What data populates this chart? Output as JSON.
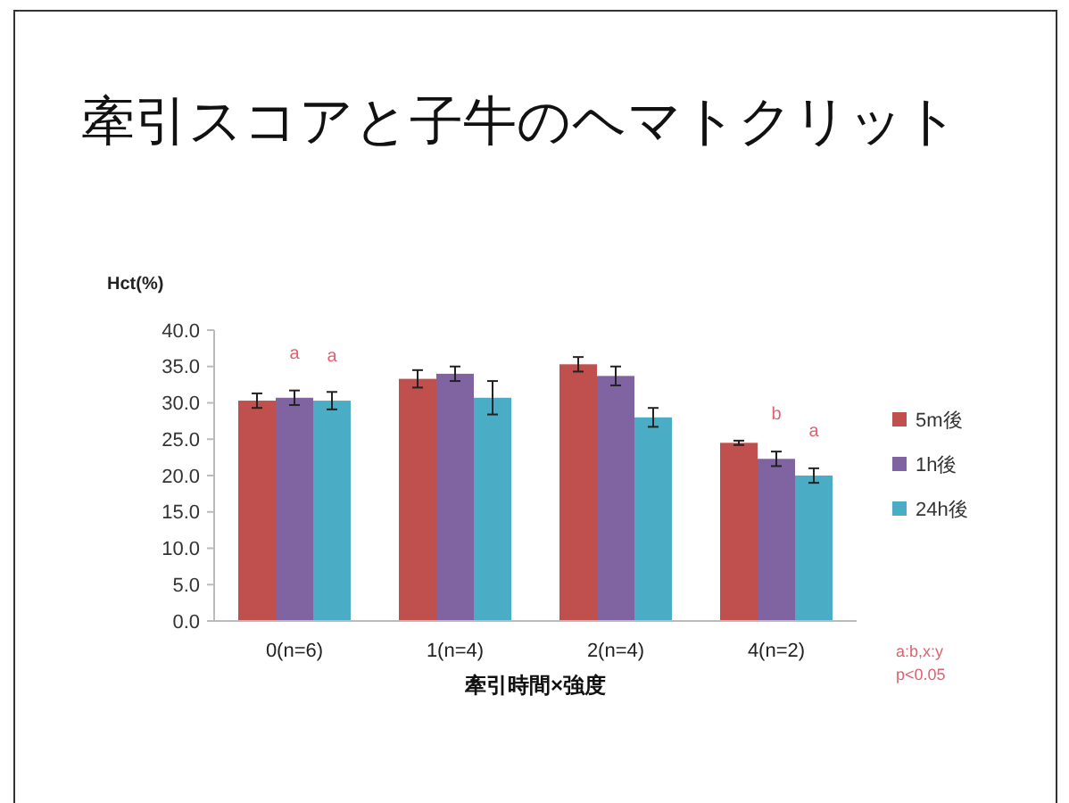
{
  "chart_data": {
    "type": "bar",
    "title": "牽引スコアと子牛のヘマトクリット",
    "xlabel": "牽引時間×強度",
    "ylabel": "Hct(%)",
    "categories": [
      "0(n=6)",
      "1(n=4)",
      "2(n=4)",
      "4(n=2)"
    ],
    "series": [
      {
        "name": "5m後",
        "color": "#c0504d",
        "values": [
          30.3,
          33.3,
          35.3,
          24.5
        ],
        "errors": [
          1.0,
          1.2,
          1.0,
          0.3
        ]
      },
      {
        "name": "1h後",
        "color": "#8064a2",
        "values": [
          30.7,
          34.0,
          33.7,
          22.3
        ],
        "errors": [
          1.0,
          1.0,
          1.3,
          1.0
        ]
      },
      {
        "name": "24h後",
        "color": "#4bacc6",
        "values": [
          30.3,
          30.7,
          28.0,
          20.0
        ],
        "errors": [
          1.2,
          2.3,
          1.3,
          1.0
        ]
      }
    ],
    "ylim": [
      0,
      40
    ],
    "yticks": [
      {
        "value": 0,
        "label": "0.0"
      },
      {
        "value": 5,
        "label": "5.0"
      },
      {
        "value": 10,
        "label": "10.0"
      },
      {
        "value": 15,
        "label": "15.0"
      },
      {
        "value": 20,
        "label": "20.0"
      },
      {
        "value": 25,
        "label": "25.0"
      },
      {
        "value": 30,
        "label": "30.0"
      },
      {
        "value": 35,
        "label": "35.0"
      },
      {
        "value": 40,
        "label": "40.0"
      }
    ],
    "legend": "right",
    "annotations": [
      "a",
      "a",
      "b",
      "a",
      "a:b,x:y",
      "p<0.05"
    ]
  }
}
